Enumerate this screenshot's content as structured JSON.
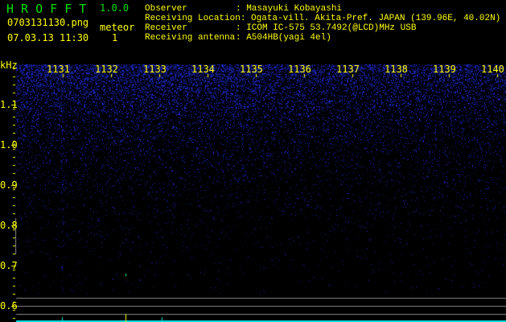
{
  "app": {
    "name": "H R O F F T",
    "version": "1.0.0"
  },
  "file": {
    "name": "0703131130.png",
    "datetime": "07.03.13 11:30"
  },
  "meteor": {
    "label": "meteor",
    "count": "1"
  },
  "info": [
    {
      "label": "Observer",
      "value": "Masayuki Kobayashi"
    },
    {
      "label": "Receiving Location",
      "value": "Ogata-vill. Akita-Pref. JAPAN (139.96E, 40.02N)"
    },
    {
      "label": "Receiver",
      "value": "ICOM IC-575 53.7492(@LCD)MHz USB"
    },
    {
      "label": "Receiving antenna",
      "value": "A504HB(yagi 4el)"
    }
  ],
  "axis": {
    "unit": "kHz",
    "y_ticks": [
      "1.1",
      "1.0",
      "0.9",
      "0.8",
      "0.7",
      "0.6"
    ],
    "x_ticks": [
      "1131",
      "1132",
      "1133",
      "1134",
      "1135",
      "1136",
      "1137",
      "1138",
      "1139",
      "1140"
    ]
  },
  "colors": {
    "text": "#ffff00",
    "title": "#00e000",
    "signal": "#2040ff",
    "baseline": "#00e0e0"
  }
}
